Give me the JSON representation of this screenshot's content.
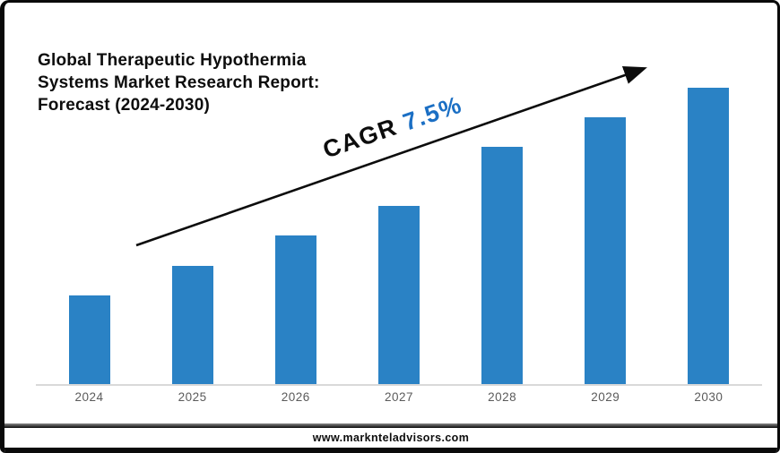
{
  "title": {
    "lines": [
      "Global Therapeutic Hypothermia",
      "Systems Market Research Report:",
      "Forecast (2024-2030)"
    ]
  },
  "annotation": {
    "label": "CAGR",
    "value": "7.5%",
    "label_color": "#0d0d0d",
    "value_color": "#1b6fc4",
    "rotation_deg": -19
  },
  "footer": {
    "url": "www.marknteladvisors.com"
  },
  "colors": {
    "bar": "#2a82c5",
    "axis_line": "#d9d9d9",
    "x_tick_label": "#5b5b5b",
    "arrow": "#0c0c0c",
    "card_border": "#0a0a0a"
  },
  "chart_data": {
    "type": "bar",
    "title": "Global Therapeutic Hypothermia Systems Market Research Report: Forecast (2024-2030)",
    "categories": [
      "2024",
      "2025",
      "2026",
      "2027",
      "2028",
      "2029",
      "2030"
    ],
    "values": [
      30,
      40,
      50,
      60,
      80,
      90,
      100
    ],
    "values_note": "relative bar heights estimated from pixels; no y-axis or data labels shown",
    "annotation": "CAGR 7.5%",
    "xlabel": "",
    "ylabel": "",
    "ylim": [
      0,
      100
    ],
    "grid": false,
    "legend": false,
    "y_axis_visible": false
  }
}
